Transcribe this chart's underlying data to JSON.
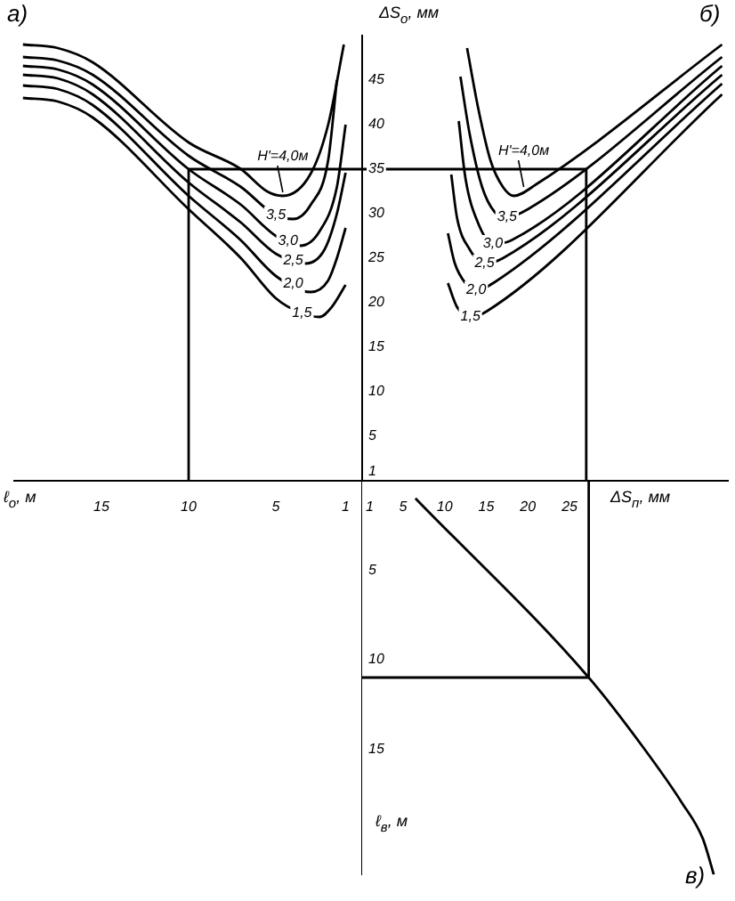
{
  "chart_data": [
    {
      "type": "line",
      "title": "а)",
      "xlabel": "ℓ$_{о}$, м",
      "xlim": [
        20,
        0
      ],
      "xticks": [
        15,
        10,
        5,
        1
      ],
      "ylim": [
        0,
        50
      ],
      "yticks": [
        1,
        5,
        10,
        15,
        20,
        25,
        30,
        35,
        40,
        45
      ],
      "tick_labels": "x",
      "series": [
        {
          "color": "#000000",
          "x": [
            1.1,
            2,
            3,
            4.6,
            5.5,
            7,
            10,
            15.5,
            17.5,
            19.5
          ],
          "values": [
            49,
            40,
            34.5,
            32,
            32.5,
            35,
            38,
            47,
            48.6,
            49
          ]
        },
        {
          "color": "#000000",
          "x": [
            1.5,
            2,
            3,
            4,
            5,
            7,
            10,
            15.5,
            17.5,
            19.5
          ],
          "values": [
            45,
            36,
            31,
            29.4,
            29.8,
            33,
            36.5,
            45.6,
            47.2,
            47.6
          ]
        },
        {
          "color": "#000000",
          "x": [
            1,
            1.5,
            2.5,
            3.6,
            5,
            7,
            10,
            15.5,
            17.5,
            19.5
          ],
          "values": [
            40,
            33,
            28,
            26.4,
            27.5,
            31,
            35,
            44.5,
            46.2,
            46.6
          ]
        },
        {
          "color": "#000000",
          "x": [
            1,
            1.5,
            2.2,
            3.3,
            5,
            7,
            10,
            15.5,
            17.5,
            19.5
          ],
          "values": [
            34.6,
            30,
            26,
            24.4,
            25.5,
            29,
            33.5,
            43.4,
            45.2,
            45.6
          ]
        },
        {
          "color": "#000000",
          "x": [
            1,
            1.5,
            2,
            3,
            5,
            7,
            10,
            15.5,
            17.5,
            19.5
          ],
          "values": [
            28.4,
            25,
            22.5,
            21.2,
            23,
            27,
            32,
            42.2,
            44,
            44.4
          ]
        },
        {
          "color": "#000000",
          "x": [
            1,
            1.8,
            2.5,
            3.5,
            5,
            7,
            10,
            15.5,
            17.5,
            19.5
          ],
          "values": [
            22,
            19.5,
            18.4,
            18.8,
            20.5,
            25,
            30.5,
            40.8,
            42.6,
            43
          ]
        },
        {
          "color": "#000000",
          "x": [
            0,
            10,
            10
          ],
          "values": [
            35,
            35,
            0
          ]
        }
      ],
      "annotations": [
        {
          "text": "H'=4,0м",
          "x": 4.6,
          "y": 32
        },
        {
          "text": "3,5",
          "x": 5,
          "y": 29.8
        },
        {
          "text": "3,0",
          "x": 4.3,
          "y": 26.9
        },
        {
          "text": "2,5",
          "x": 4,
          "y": 24.7
        },
        {
          "text": "2,0",
          "x": 4,
          "y": 22.1
        },
        {
          "text": "1,5",
          "x": 3.5,
          "y": 18.8
        }
      ]
    },
    {
      "type": "line",
      "title": "б)",
      "xlabel": "ΔS$_{п}$, мм",
      "ylabel": "ΔS$_{о}$, мм",
      "xlim": [
        0,
        44
      ],
      "xticks": [
        1,
        5,
        10,
        15,
        20,
        25
      ],
      "ylim": [
        0,
        50
      ],
      "yticks": [
        1,
        5,
        10,
        15,
        20,
        25,
        30,
        35,
        40,
        45
      ],
      "series": [
        {
          "color": "#000000",
          "x": [
            12.7,
            14,
            15.5,
            17,
            18.3,
            21,
            43.3
          ],
          "values": [
            48.6,
            42,
            36,
            33,
            32,
            33.3,
            49
          ]
        },
        {
          "color": "#000000",
          "x": [
            11.9,
            13,
            14.5,
            16,
            17.5,
            20,
            43.3
          ],
          "values": [
            45.4,
            39,
            33,
            30.2,
            29.6,
            30.5,
            47.6
          ]
        },
        {
          "color": "#000000",
          "x": [
            11.7,
            12.5,
            14,
            15.8,
            18,
            43.3
          ],
          "values": [
            40.4,
            34,
            29,
            26.6,
            27,
            46.6
          ]
        },
        {
          "color": "#000000",
          "x": [
            10.8,
            11.5,
            13,
            14.8,
            17,
            43.3
          ],
          "values": [
            34.4,
            29.5,
            26,
            24.4,
            25,
            45.6
          ]
        },
        {
          "color": "#000000",
          "x": [
            10.4,
            11.2,
            12.5,
            13.8,
            16,
            43.3
          ],
          "values": [
            27.8,
            24.5,
            22.2,
            21.4,
            22.3,
            44.6
          ]
        },
        {
          "color": "#000000",
          "x": [
            10.4,
            11.5,
            13.1,
            15,
            43.3
          ],
          "values": [
            22.2,
            19.5,
            18.4,
            19,
            43.4
          ]
        },
        {
          "color": "#000000",
          "x": [
            0,
            27,
            27
          ],
          "values": [
            35,
            35,
            0
          ]
        }
      ],
      "annotations": [
        {
          "text": "H'=4,0м",
          "x": 19.5,
          "y": 32.6
        },
        {
          "text": "3,5",
          "x": 17.5,
          "y": 29.6
        },
        {
          "text": "3,0",
          "x": 15.8,
          "y": 26.6
        },
        {
          "text": "2,5",
          "x": 14.8,
          "y": 24.4
        },
        {
          "text": "2,0",
          "x": 13.8,
          "y": 21.4
        },
        {
          "text": "1,5",
          "x": 13.1,
          "y": 18.4
        }
      ]
    },
    {
      "type": "line",
      "title": "в)",
      "ylabel": "ℓ$_{в}$, м",
      "xlim": [
        0,
        44
      ],
      "ylim": [
        22,
        0
      ],
      "yticks": [
        5,
        10,
        15
      ],
      "tick_labels": "y",
      "series": [
        {
          "color": "#000000",
          "x": [
            6.5,
            27.3,
            34,
            38.5,
            41,
            42,
            42.3
          ],
          "values": [
            1,
            11,
            15,
            18,
            20,
            21.5,
            22
          ]
        },
        {
          "color": "#000000",
          "x": [
            0,
            27.3,
            27.3
          ],
          "values": [
            11,
            11,
            0
          ]
        }
      ]
    }
  ]
}
